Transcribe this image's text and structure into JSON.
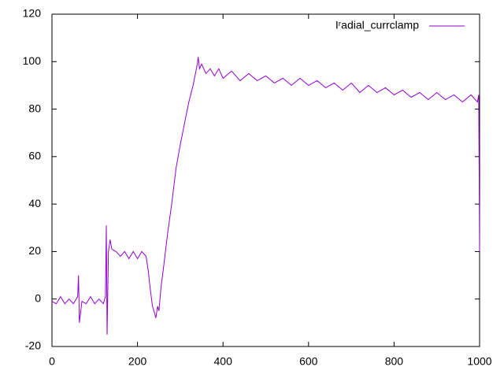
{
  "chart_data": {
    "type": "line",
    "x": [
      0,
      10,
      20,
      30,
      40,
      50,
      60,
      62,
      64,
      70,
      80,
      90,
      100,
      110,
      120,
      125,
      127,
      129,
      132,
      136,
      140,
      150,
      160,
      170,
      180,
      190,
      200,
      210,
      220,
      225,
      230,
      235,
      240,
      243,
      247,
      250,
      255,
      260,
      270,
      280,
      290,
      300,
      310,
      320,
      330,
      340,
      342,
      345,
      350,
      360,
      370,
      380,
      390,
      400,
      420,
      440,
      460,
      480,
      500,
      520,
      540,
      560,
      580,
      600,
      620,
      640,
      660,
      680,
      700,
      720,
      740,
      760,
      780,
      800,
      820,
      840,
      860,
      880,
      900,
      920,
      940,
      960,
      980,
      995,
      998,
      1000
    ],
    "series": [
      {
        "name": "Iʳadial_currclamp",
        "color": "#9400d3",
        "values": [
          -1,
          -2,
          1,
          -2,
          0,
          -2,
          1,
          10,
          -10,
          -1,
          -2,
          1,
          -2,
          0,
          -2,
          1,
          31,
          -15,
          20,
          25,
          21,
          20,
          18,
          20,
          17,
          20,
          17,
          20,
          18,
          12,
          4,
          -3,
          -6,
          -8,
          -3,
          -5,
          5,
          12,
          27,
          40,
          55,
          65,
          74,
          83,
          90,
          99,
          102,
          97,
          99,
          95,
          97,
          94,
          97,
          93,
          96,
          92,
          95,
          92,
          94,
          91,
          93,
          90,
          93,
          90,
          92,
          89,
          91,
          88,
          91,
          87,
          90,
          87,
          89,
          86,
          88,
          85,
          87,
          84,
          87,
          84,
          86,
          83,
          86,
          83,
          86,
          20
        ]
      }
    ],
    "xlim": [
      0,
      1000
    ],
    "xticks": [
      0,
      200,
      400,
      600,
      800,
      1000
    ],
    "ylim": [
      -20,
      120
    ],
    "yticks": [
      -20,
      0,
      20,
      40,
      60,
      80,
      100,
      120
    ],
    "legend": "top-right"
  }
}
